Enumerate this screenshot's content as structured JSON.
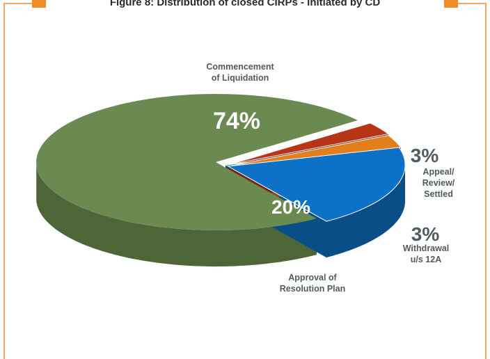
{
  "title": "Figure 8: Distribution of closed CIRPs - Initiated by CD",
  "colors": {
    "frame": "#f28c28",
    "commencement_top": "#6b8a52",
    "commencement_side": "#4e6537",
    "approval_top": "#0d72c7",
    "approval_side": "#0a4e88",
    "withdrawal_top": "#e07f1b",
    "withdrawal_side": "#8a4a0c",
    "appeal_top": "#b83416",
    "appeal_side": "#7a220e"
  },
  "chart_data": {
    "type": "pie",
    "title": "Figure 8: Distribution of closed CIRPs - Initiated by CD",
    "unit": "%",
    "slices": [
      {
        "key": "commencement",
        "value": 74,
        "label_lines": [
          "Commencement",
          "of Liquidation"
        ],
        "value_label": "74%"
      },
      {
        "key": "approval",
        "value": 20,
        "label_lines": [
          "Approval of",
          "Resolution Plan"
        ],
        "value_label": "20%"
      },
      {
        "key": "withdrawal",
        "value": 3,
        "label_lines": [
          "Withdrawal",
          "u/s 12A"
        ],
        "value_label": "3%"
      },
      {
        "key": "appeal",
        "value": 3,
        "label_lines": [
          "Appeal/",
          "Review/",
          "Settled"
        ],
        "value_label": "3%"
      }
    ]
  }
}
